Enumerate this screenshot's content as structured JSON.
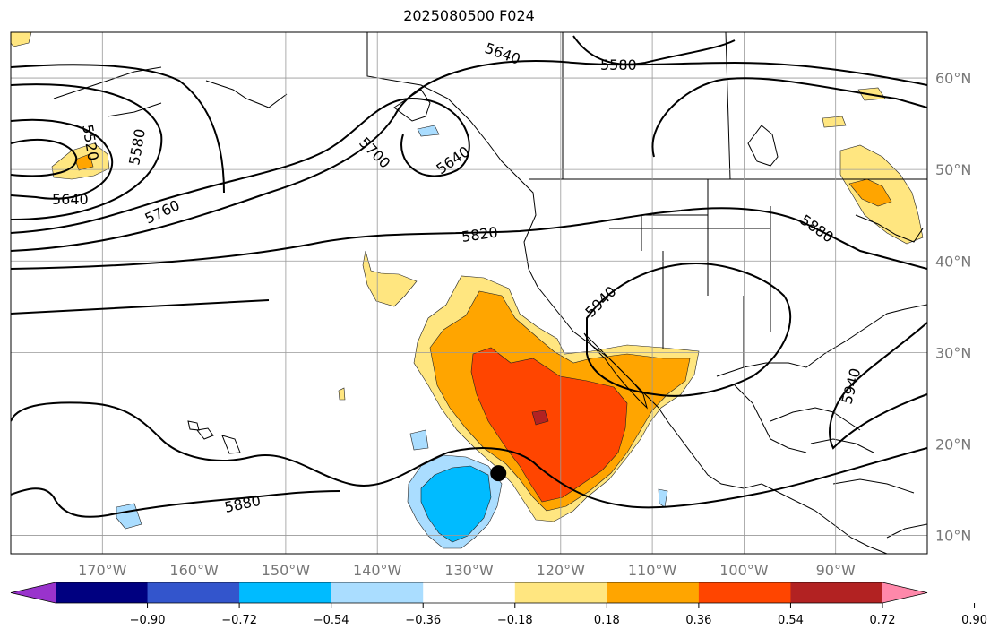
{
  "title": "2025080500 F024",
  "map": {
    "lon_ticks": [
      {
        "label": "170°W",
        "lon": -170
      },
      {
        "label": "160°W",
        "lon": -160
      },
      {
        "label": "150°W",
        "lon": -150
      },
      {
        "label": "140°W",
        "lon": -140
      },
      {
        "label": "130°W",
        "lon": -130
      },
      {
        "label": "120°W",
        "lon": -120
      },
      {
        "label": "110°W",
        "lon": -110
      },
      {
        "label": "100°W",
        "lon": -100
      },
      {
        "label": "90°W",
        "lon": -90
      }
    ],
    "lat_ticks": [
      {
        "label": "60°N",
        "lat": 60
      },
      {
        "label": "50°N",
        "lat": 50
      },
      {
        "label": "40°N",
        "lat": 40
      },
      {
        "label": "30°N",
        "lat": 30
      },
      {
        "label": "20°N",
        "lat": 20
      },
      {
        "label": "10°N",
        "lat": 10
      }
    ],
    "extent": {
      "lon_min": -180,
      "lon_max": -80,
      "lat_min": 8,
      "lat_max": 65
    },
    "contour_labels": [
      "5640",
      "5580",
      "5520",
      "5580",
      "5640",
      "5700",
      "5760",
      "5640",
      "5820",
      "5880",
      "5940",
      "5940",
      "5880"
    ],
    "marker": {
      "lon": -126.8,
      "lat": 16.8
    }
  },
  "colorbar": {
    "colors": [
      "#9933cc",
      "#000080",
      "#3355cc",
      "#00bbff",
      "#aaddff",
      "#ffffff",
      "#ffe680",
      "#ffa500",
      "#ff4500",
      "#b22222",
      "#ff88aa"
    ],
    "tick_labels": [
      "−0.90",
      "−0.72",
      "−0.54",
      "−0.36",
      "−0.18",
      "0.18",
      "0.36",
      "0.54",
      "0.72",
      "0.90"
    ]
  }
}
